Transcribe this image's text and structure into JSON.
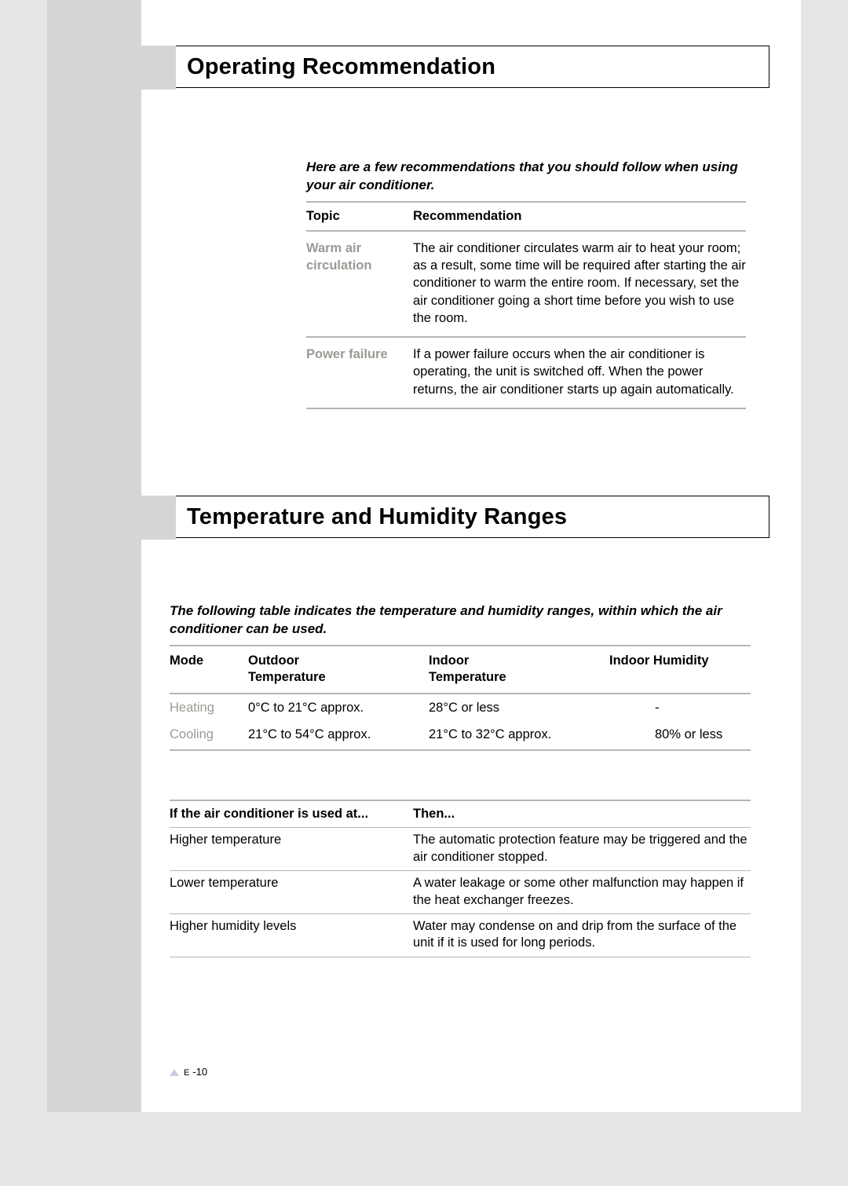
{
  "colors": {
    "page_bg": "#ffffff",
    "outer_bg": "#e6e6e6",
    "sidebar_bg": "#d5d5d5",
    "rule": "#b5b5b5",
    "muted_text": "#9a9a94",
    "triangle": "#c7cfe0"
  },
  "typography": {
    "base_family": "Arial, Helvetica, sans-serif",
    "heading_pt": 29,
    "body_pt": 16.5,
    "intro_pt": 17,
    "pagenum_pt": 13
  },
  "section1": {
    "title": "Operating Recommendation",
    "intro": "Here are a few recommendations that you should follow when using your air conditioner.",
    "headers": {
      "topic": "Topic",
      "rec": "Recommendation"
    },
    "rows": [
      {
        "topic": "Warm air circulation",
        "rec": "The air conditioner circulates warm air to heat your room; as a result, some time will be required after starting the air conditioner to warm the entire room. If necessary, set the air conditioner going a short time before you wish to use the room."
      },
      {
        "topic": "Power failure",
        "rec": "If a power failure occurs when the air conditioner is operating, the unit is switched off. When the power returns, the air conditioner starts up again automatically."
      }
    ]
  },
  "section2": {
    "title": "Temperature and Humidity Ranges",
    "intro": "The following table indicates the temperature and humidity ranges, within which the air conditioner can be used.",
    "range_headers": {
      "mode": "Mode",
      "out1": "Outdoor",
      "out2": "Temperature",
      "in1": "Indoor",
      "in2": "Temperature",
      "hum": "Indoor Humidity"
    },
    "range_rows": [
      {
        "mode": "Heating",
        "out": "0°C to 21°C approx.",
        "in": "28°C or less",
        "hum": "-"
      },
      {
        "mode": "Cooling",
        "out": "21°C to 54°C approx.",
        "in": "21°C to 32°C approx.",
        "hum": "80% or less"
      }
    ],
    "cond_headers": {
      "cond": "If the air conditioner is used at...",
      "then": "Then..."
    },
    "cond_rows": [
      {
        "cond": "Higher temperature",
        "then": "The automatic protection feature may be triggered and the air conditioner stopped."
      },
      {
        "cond": "Lower temperature",
        "then": "A water leakage or some other malfunction may happen if the heat exchanger freezes."
      },
      {
        "cond": "Higher humidity levels",
        "then": "Water may condense on and drip from the surface of the unit if it is used for long periods."
      }
    ]
  },
  "page_number": {
    "prefix": "E",
    "num": "-10"
  }
}
